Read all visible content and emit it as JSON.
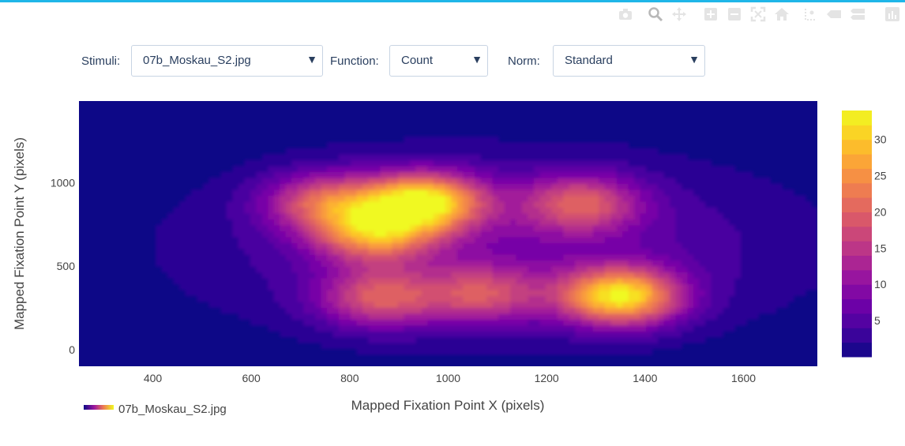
{
  "controls": {
    "stimuli": {
      "label": "Stimuli:",
      "value": "07b_Moskau_S2.jpg"
    },
    "function": {
      "label": "Function:",
      "value": "Count"
    },
    "norm": {
      "label": "Norm:",
      "value": "Standard"
    }
  },
  "modebar": [
    "camera-icon",
    "zoom-icon",
    "pan-icon",
    "zoom-in-icon",
    "zoom-out-icon",
    "autoscale-icon",
    "reset-axes-icon",
    "spike-lines-icon",
    "hover-closest-icon",
    "hover-compare-icon",
    "plotly-logo-icon"
  ],
  "colors": {
    "accent": "#1fb6e8",
    "plot_background": "#0d0887",
    "colorscale": [
      "#0d0887",
      "#46039f",
      "#7201a8",
      "#9c179e",
      "#bd3786",
      "#d8576b",
      "#ed7953",
      "#fb9f3a",
      "#fdca26",
      "#f0f921"
    ]
  },
  "chart_data": {
    "type": "contour",
    "xlabel": "Mapped Fixation Point X (pixels)",
    "ylabel": "Mapped Fixation Point Y (pixels)",
    "xlim": [
      250,
      1750
    ],
    "ylim": [
      -100,
      1490
    ],
    "x_ticks": [
      400,
      600,
      800,
      1000,
      1200,
      1400,
      1600
    ],
    "y_ticks": [
      0,
      500,
      1000
    ],
    "colorbar": {
      "range": [
        0,
        34
      ],
      "ticks": [
        5,
        10,
        15,
        20,
        25,
        30
      ]
    },
    "legend": {
      "entries": [
        "07b_Moskau_S2.jpg"
      ],
      "placement": "bottom-left"
    },
    "peaks": [
      {
        "x": 950,
        "y": 890,
        "value": 30
      },
      {
        "x": 1350,
        "y": 320,
        "value": 30
      },
      {
        "x": 850,
        "y": 700,
        "value": 21
      },
      {
        "x": 750,
        "y": 890,
        "value": 17
      },
      {
        "x": 1270,
        "y": 880,
        "value": 16
      },
      {
        "x": 860,
        "y": 310,
        "value": 16
      },
      {
        "x": 1070,
        "y": 330,
        "value": 14
      }
    ]
  }
}
